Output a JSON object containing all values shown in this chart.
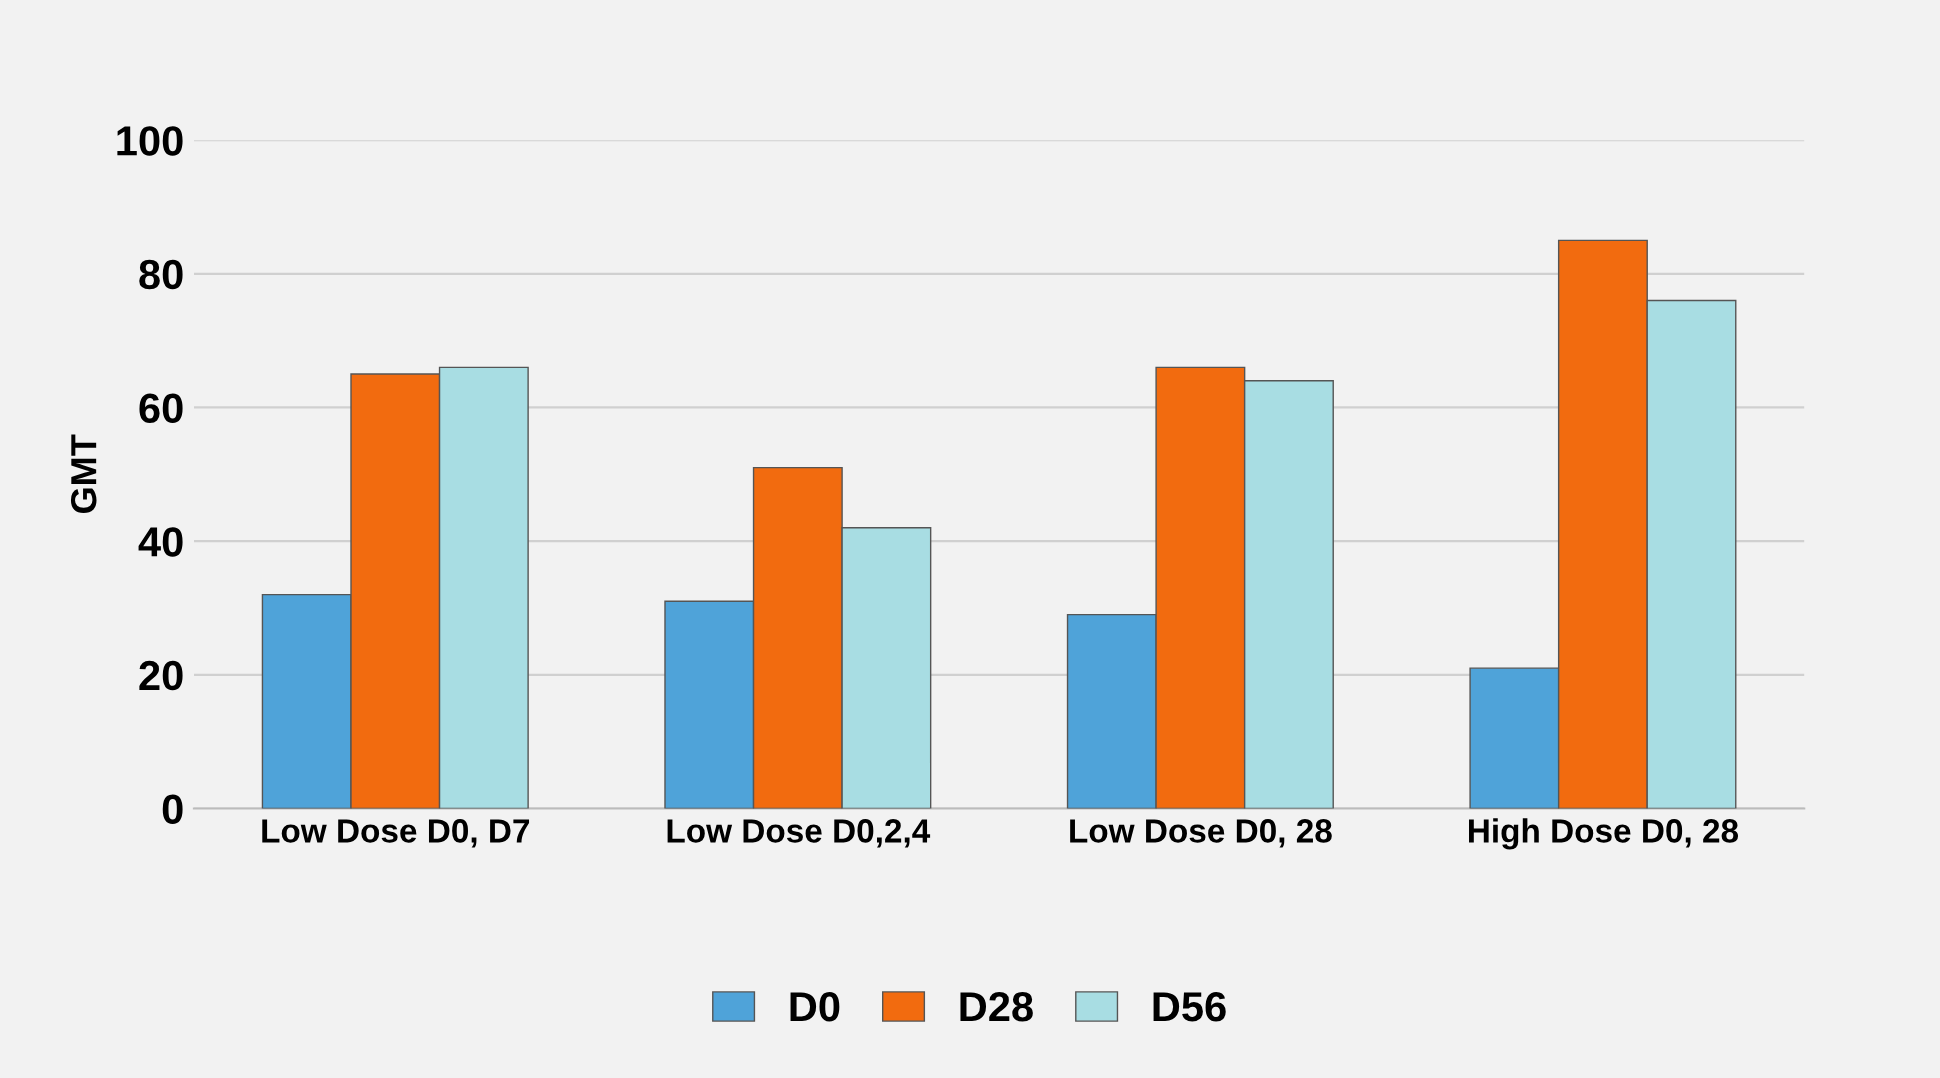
{
  "chart_data": {
    "type": "bar",
    "ylabel": "GMT",
    "categories": [
      "Low Dose D0, D7",
      "Low Dose D0,2,4",
      "Low Dose D0, 28",
      "High Dose D0, 28"
    ],
    "series": [
      {
        "name": "D0",
        "color": "#4fa3d9",
        "values": [
          32,
          31,
          29,
          21
        ]
      },
      {
        "name": "D28",
        "color": "#f26b0f",
        "values": [
          65,
          51,
          66,
          85
        ]
      },
      {
        "name": "D56",
        "color": "#a8dde3",
        "values": [
          66,
          42,
          64,
          76
        ]
      }
    ],
    "ylim": [
      0,
      100
    ],
    "yticks": [
      0,
      20,
      40,
      60,
      80,
      100
    ],
    "grid": "y",
    "legend": "bottom"
  }
}
